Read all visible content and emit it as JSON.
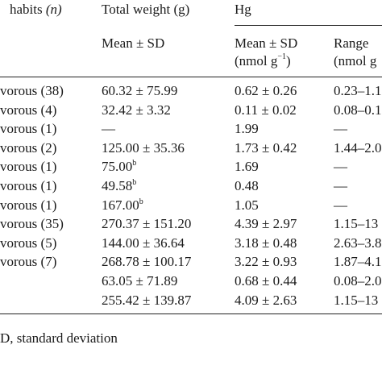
{
  "header": {
    "habits": "habits",
    "habits_n": "(n)",
    "total_weight": "Total weight (g)",
    "hg": "Hg",
    "mean_sd_weight": "Mean ± SD",
    "mean_sd_hg_line1": "Mean ± SD",
    "hg_unit_prefix": "(nmol g",
    "hg_unit_exp": "−1",
    "hg_unit_suffix": ")",
    "range_line1": "Range",
    "range_line2": "(nmol g"
  },
  "rows": [
    {
      "habit": "vorous (38)",
      "weight": "60.32 ± 75.99",
      "weight_sup": "",
      "hg": "0.62 ± 0.26",
      "range": "0.23–1.1"
    },
    {
      "habit": "vorous (4)",
      "weight": "32.42 ± 3.32",
      "weight_sup": "",
      "hg": "0.11 ± 0.02",
      "range": "0.08–0.1"
    },
    {
      "habit": "vorous (1)",
      "weight": "—",
      "weight_sup": "",
      "hg": "1.99",
      "range": "—"
    },
    {
      "habit": "vorous (2)",
      "weight": "125.00 ± 35.36",
      "weight_sup": "",
      "hg": "1.73 ± 0.42",
      "range": "1.44–2.0"
    },
    {
      "habit": "vorous (1)",
      "weight": "75.00",
      "weight_sup": "b",
      "hg": "1.69",
      "range": "—"
    },
    {
      "habit": "vorous (1)",
      "weight": "49.58",
      "weight_sup": "b",
      "hg": "0.48",
      "range": "—"
    },
    {
      "habit": "vorous (1)",
      "weight": "167.00",
      "weight_sup": "b",
      "hg": "1.05",
      "range": "—"
    },
    {
      "habit": "vorous (35)",
      "weight": "270.37 ± 151.20",
      "weight_sup": "",
      "hg": "4.39 ± 2.97",
      "range": "1.15–13"
    },
    {
      "habit": "vorous (5)",
      "weight": "144.00 ± 36.64",
      "weight_sup": "",
      "hg": "3.18 ± 0.48",
      "range": "2.63–3.8"
    },
    {
      "habit": "vorous (7)",
      "weight": "268.78 ± 100.17",
      "weight_sup": "",
      "hg": "3.22 ± 0.93",
      "range": "1.87–4.1"
    },
    {
      "habit": "",
      "weight": "63.05 ± 71.89",
      "weight_sup": "",
      "hg": "0.68 ± 0.44",
      "range": "0.08–2.0"
    },
    {
      "habit": "",
      "weight": "255.42 ± 139.87",
      "weight_sup": "",
      "hg": "4.09 ± 2.63",
      "range": "1.15–13"
    }
  ],
  "footnote": "D, standard deviation"
}
